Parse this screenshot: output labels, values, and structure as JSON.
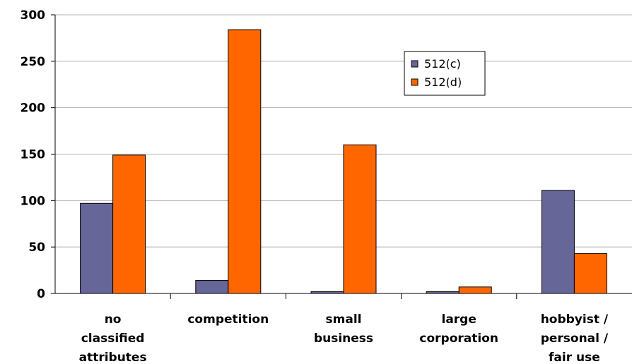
{
  "chart_data": {
    "type": "bar",
    "categories": [
      [
        "no",
        "classified",
        "attributes"
      ],
      [
        "competition"
      ],
      [
        "small",
        "business"
      ],
      [
        "large",
        "corporation"
      ],
      [
        "hobbyist /",
        "personal /",
        "fair use"
      ]
    ],
    "series": [
      {
        "name": "512(c)",
        "color": "#666699",
        "values": [
          97,
          14,
          2,
          2,
          111
        ]
      },
      {
        "name": "512(d)",
        "color": "#ff6600",
        "values": [
          149,
          284,
          160,
          7,
          43
        ]
      }
    ],
    "ylim": [
      0,
      300
    ],
    "yticks": [
      "0",
      "50",
      "100",
      "150",
      "200",
      "250",
      "300"
    ],
    "grid": true,
    "legend_position": "top-right"
  }
}
